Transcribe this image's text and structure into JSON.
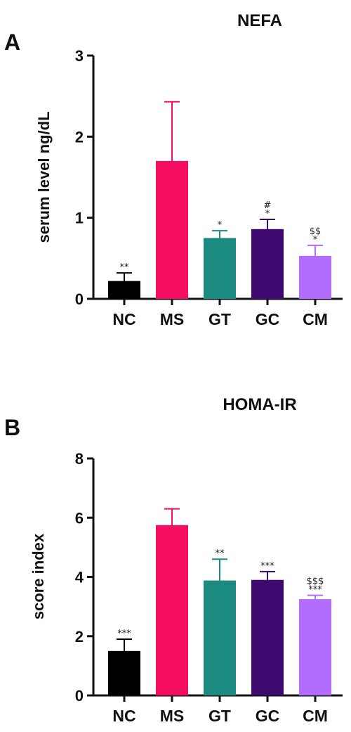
{
  "chart_data": [
    {
      "panel": "A",
      "type": "bar",
      "title": "NEFA",
      "ylabel": "serum level ng/dL",
      "ylim": [
        0,
        3
      ],
      "yticks": [
        "0",
        "1",
        "2",
        "3"
      ],
      "categories": [
        "NC",
        "MS",
        "GT",
        "GC",
        "CM"
      ],
      "values": [
        0.22,
        1.7,
        0.75,
        0.86,
        0.53
      ],
      "errors": [
        0.1,
        0.73,
        0.09,
        0.12,
        0.13
      ],
      "colors": [
        "#000000",
        "#f50d62",
        "#1b8a80",
        "#3f0a6f",
        "#b26dff"
      ],
      "annotations": [
        [
          "**"
        ],
        [],
        [
          "*"
        ],
        [
          "#",
          "*"
        ],
        [
          "$$",
          "*"
        ]
      ]
    },
    {
      "panel": "B",
      "type": "bar",
      "title": "HOMA-IR",
      "ylabel": "score index",
      "ylim": [
        0,
        8
      ],
      "yticks": [
        "0",
        "2",
        "4",
        "6",
        "8"
      ],
      "categories": [
        "NC",
        "MS",
        "GT",
        "GC",
        "CM"
      ],
      "values": [
        1.5,
        5.75,
        3.88,
        3.9,
        3.25
      ],
      "errors": [
        0.4,
        0.55,
        0.72,
        0.28,
        0.13
      ],
      "colors": [
        "#000000",
        "#f50d62",
        "#1b8a80",
        "#3f0a6f",
        "#b26dff"
      ],
      "annotations": [
        [
          "***"
        ],
        [],
        [
          "**"
        ],
        [
          "***"
        ],
        [
          "$$$",
          "***"
        ]
      ]
    }
  ]
}
